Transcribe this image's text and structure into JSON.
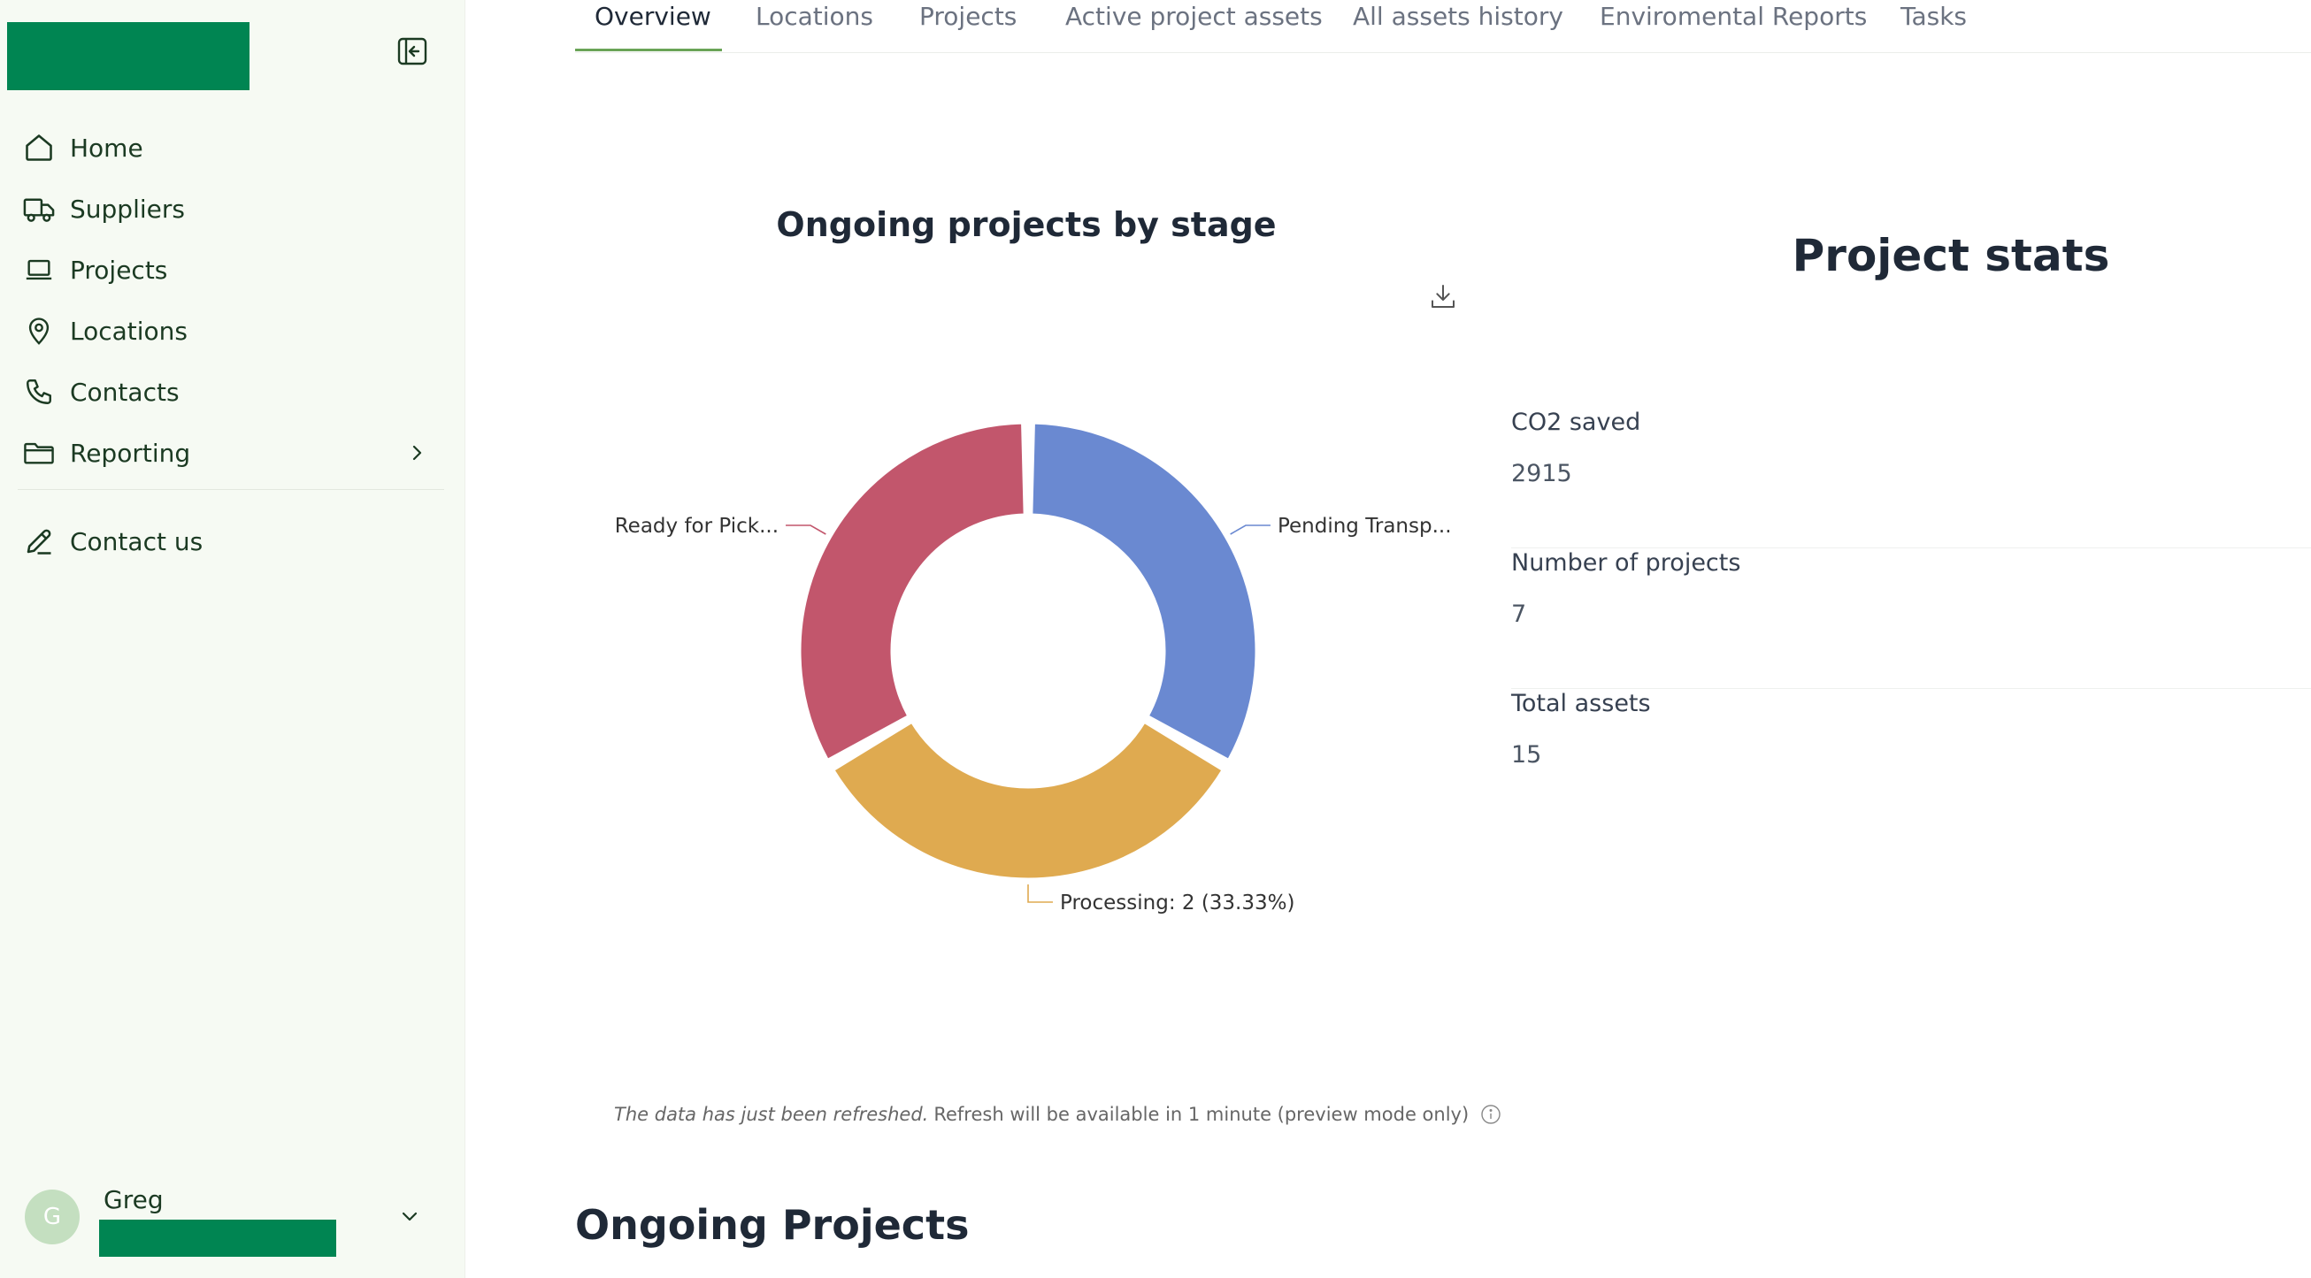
{
  "sidebar": {
    "items": [
      {
        "label": "Home",
        "icon": "home-icon"
      },
      {
        "label": "Suppliers",
        "icon": "truck-icon"
      },
      {
        "label": "Projects",
        "icon": "laptop-icon"
      },
      {
        "label": "Locations",
        "icon": "map-pin-icon"
      },
      {
        "label": "Contacts",
        "icon": "phone-icon"
      },
      {
        "label": "Reporting",
        "icon": "folder-icon"
      }
    ],
    "contact_us": "Contact us",
    "user": {
      "initial": "G",
      "name": "Greg"
    }
  },
  "tabs": [
    "Overview",
    "Locations",
    "Projects",
    "Active project assets",
    "All assets history",
    "Enviromental Reports",
    "Tasks"
  ],
  "active_tab": "Overview",
  "chart_data": {
    "type": "pie",
    "title": "Ongoing projects by stage",
    "donut": true,
    "slices": [
      {
        "label": "Pending Transp...",
        "value": 2,
        "color": "#6a89d1"
      },
      {
        "label": "Processing: 2 (33.33%)",
        "value": 2,
        "color": "#dfaa50"
      },
      {
        "label": "Ready for Pick...",
        "value": 2,
        "color": "#c2566c"
      }
    ]
  },
  "refresh": {
    "italic": "The data has just been refreshed.",
    "text": "Refresh will be available in 1 minute (preview mode only)"
  },
  "stats": {
    "title": "Project stats",
    "items": [
      {
        "label": "CO2 saved",
        "value": "2915"
      },
      {
        "label": "Number of projects",
        "value": "7"
      },
      {
        "label": "Total assets",
        "value": "15"
      }
    ]
  },
  "ongoing_title": "Ongoing Projects",
  "colors": {
    "brand": "#008552",
    "tab_accent": "#6aa457"
  }
}
